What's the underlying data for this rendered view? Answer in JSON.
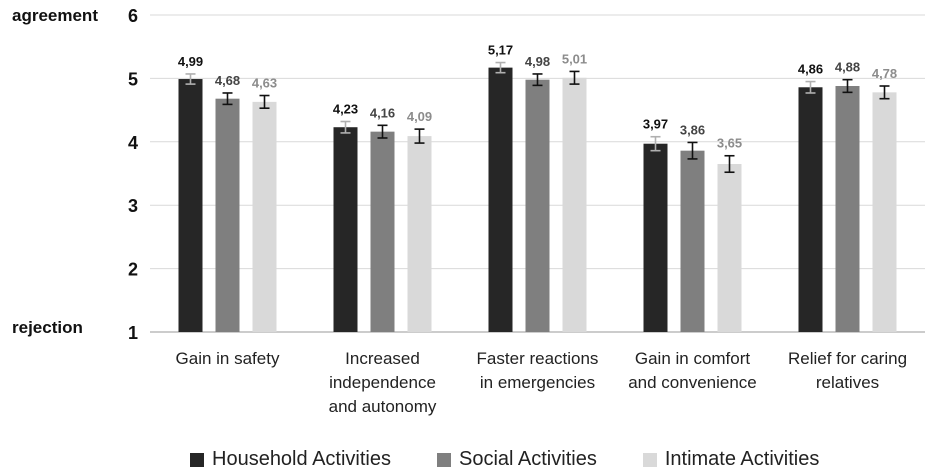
{
  "chart_data": {
    "type": "bar",
    "title": "",
    "ylabel_top": "agreement",
    "ylabel_bottom": "rejection",
    "ylim": [
      1,
      6
    ],
    "yticks": [
      1,
      2,
      3,
      4,
      5,
      6
    ],
    "grid": true,
    "legend_position": "bottom",
    "categories": [
      [
        "Gain in safety"
      ],
      [
        "Increased",
        "independence",
        "and autonomy"
      ],
      [
        "Faster reactions",
        "in emergencies"
      ],
      [
        "Gain in comfort",
        "and convenience"
      ],
      [
        "Relief for caring",
        "relatives"
      ]
    ],
    "series": [
      {
        "name": "Household Activities",
        "color": "#262626",
        "label_color": "#111111",
        "values": [
          4.99,
          4.23,
          5.17,
          3.97,
          4.86
        ],
        "labels": [
          "4,99",
          "4,23",
          "5,17",
          "3,97",
          "4,86"
        ],
        "errors": [
          0.08,
          0.09,
          0.08,
          0.11,
          0.09
        ]
      },
      {
        "name": "Social Activities",
        "color": "#7f7f7f",
        "label_color": "#444444",
        "values": [
          4.68,
          4.16,
          4.98,
          3.86,
          4.88
        ],
        "labels": [
          "4,68",
          "4,16",
          "4,98",
          "3,86",
          "4,88"
        ],
        "errors": [
          0.09,
          0.1,
          0.09,
          0.13,
          0.1
        ]
      },
      {
        "name": "Intimate Activities",
        "color": "#d9d9d9",
        "label_color": "#8c8c8c",
        "values": [
          4.63,
          4.09,
          5.01,
          3.65,
          4.78
        ],
        "labels": [
          "4,63",
          "4,09",
          "5,01",
          "3,65",
          "4,78"
        ],
        "errors": [
          0.1,
          0.11,
          0.1,
          0.13,
          0.1
        ]
      }
    ]
  }
}
